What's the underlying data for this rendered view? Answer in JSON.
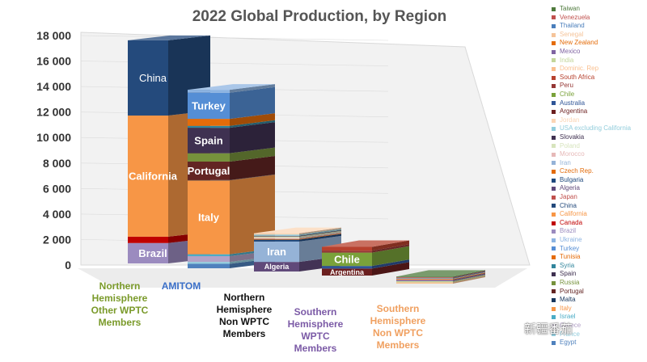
{
  "chart_data": {
    "type": "bar",
    "subtype": "stacked-3d",
    "title": "2022 Global Production, by Region",
    "ylim": [
      0,
      18000
    ],
    "yticks": [
      "0",
      "2 000",
      "4 000",
      "6 000",
      "8 000",
      "10 000",
      "12 000",
      "14 000",
      "16 000",
      "18 000"
    ],
    "categories": [
      {
        "label": "Northern Hemisphere Other WPTC Members",
        "color": "#7a9a2a"
      },
      {
        "label": "AMITOM",
        "color": "#3a6fc8"
      },
      {
        "label": "Northern Hemisphere Non WPTC Members",
        "color": "#111111"
      },
      {
        "label": "Southern Hemisphere WPTC Members",
        "color": "#7b5aa6"
      },
      {
        "label": "Southern Hemisphere Non WPTC Members",
        "color": "#f0a060"
      }
    ],
    "stacks": [
      {
        "category": "Northern Hemisphere Other WPTC Members",
        "segments": [
          {
            "name": "Brazil",
            "value": 1600,
            "label": "Brazil"
          },
          {
            "name": "Canada",
            "value": 500,
            "label": ""
          },
          {
            "name": "California",
            "value": 9500,
            "label": "California"
          },
          {
            "name": "China",
            "value": 5900,
            "label": "China"
          }
        ]
      },
      {
        "category": "AMITOM",
        "segments": [
          {
            "name": "Egypt",
            "value": 350,
            "label": ""
          },
          {
            "name": "France",
            "value": 150,
            "label": ""
          },
          {
            "name": "Greece",
            "value": 450,
            "label": ""
          },
          {
            "name": "Israel",
            "value": 150,
            "label": ""
          },
          {
            "name": "Italy",
            "value": 5800,
            "label": "Italy"
          },
          {
            "name": "Malta",
            "value": 20,
            "label": ""
          },
          {
            "name": "Portugal",
            "value": 1450,
            "label": "Portugal"
          },
          {
            "name": "Russia",
            "value": 650,
            "label": ""
          },
          {
            "name": "Spain",
            "value": 2000,
            "label": "Spain"
          },
          {
            "name": "Syria",
            "value": 150,
            "label": ""
          },
          {
            "name": "Tunisia",
            "value": 550,
            "label": ""
          },
          {
            "name": "Turkey",
            "value": 2050,
            "label": "Turkey"
          },
          {
            "name": "Ukraine",
            "value": 230,
            "label": ""
          }
        ]
      },
      {
        "category": "Northern Hemisphere Non WPTC Members",
        "segments": [
          {
            "name": "Algeria",
            "value": 750,
            "label": "Algeria"
          },
          {
            "name": "Iran",
            "value": 1600,
            "label": "Iran"
          },
          {
            "name": "Bulgaria",
            "value": 150,
            "label": ""
          },
          {
            "name": "Czech Rep.",
            "value": 50,
            "label": ""
          },
          {
            "name": "Morocco",
            "value": 100,
            "label": ""
          },
          {
            "name": "Poland",
            "value": 100,
            "label": ""
          },
          {
            "name": "Slovakia",
            "value": 50,
            "label": ""
          },
          {
            "name": "USA excluding California",
            "value": 100,
            "label": ""
          },
          {
            "name": "Jordan",
            "value": 100,
            "label": ""
          }
        ]
      },
      {
        "category": "Southern Hemisphere WPTC Members",
        "segments": [
          {
            "name": "Argentina",
            "value": 550,
            "label": "Argentina"
          },
          {
            "name": "Australia",
            "value": 200,
            "label": ""
          },
          {
            "name": "Chile",
            "value": 1050,
            "label": "Chile"
          },
          {
            "name": "Peru",
            "value": 150,
            "label": ""
          },
          {
            "name": "South Africa",
            "value": 300,
            "label": ""
          }
        ]
      },
      {
        "category": "Southern Hemisphere Non WPTC Members",
        "segments": [
          {
            "name": "Dominic. Rep",
            "value": 100,
            "label": ""
          },
          {
            "name": "India",
            "value": 100,
            "label": ""
          },
          {
            "name": "Mexico",
            "value": 100,
            "label": ""
          },
          {
            "name": "New Zealand",
            "value": 50,
            "label": ""
          },
          {
            "name": "Senegal",
            "value": 50,
            "label": ""
          },
          {
            "name": "Thailand",
            "value": 50,
            "label": ""
          },
          {
            "name": "Venezuela",
            "value": 50,
            "label": ""
          },
          {
            "name": "Taiwan",
            "value": 50,
            "label": ""
          }
        ]
      }
    ],
    "legend": {
      "position": "right",
      "items": [
        {
          "name": "Taiwan",
          "color": "#4e7a3c"
        },
        {
          "name": "Venezuela",
          "color": "#c0504d"
        },
        {
          "name": "Thailand",
          "color": "#4a7ebb"
        },
        {
          "name": "Senegal",
          "color": "#f5c49a"
        },
        {
          "name": "New Zealand",
          "color": "#e46c0a"
        },
        {
          "name": "Mexico",
          "color": "#8064a2"
        },
        {
          "name": "India",
          "color": "#c3d69b"
        },
        {
          "name": "Dominic. Rep",
          "color": "#fac090"
        },
        {
          "name": "South Africa",
          "color": "#b7412e"
        },
        {
          "name": "Peru",
          "color": "#953735"
        },
        {
          "name": "Chile",
          "color": "#7aa23a"
        },
        {
          "name": "Australia",
          "color": "#2f5597"
        },
        {
          "name": "Argentina",
          "color": "#6b1f1f"
        },
        {
          "name": "Jordan",
          "color": "#fbd5b5"
        },
        {
          "name": "USA excluding California",
          "color": "#92cddc"
        },
        {
          "name": "Slovakia",
          "color": "#403151"
        },
        {
          "name": "Poland",
          "color": "#d7e4bd"
        },
        {
          "name": "Morocco",
          "color": "#e6b9b8"
        },
        {
          "name": "Iran",
          "color": "#95b3d7"
        },
        {
          "name": "Czech Rep.",
          "color": "#e26b0a"
        },
        {
          "name": "Bulgaria",
          "color": "#1f497d"
        },
        {
          "name": "Algeria",
          "color": "#60497a"
        },
        {
          "name": "Japan",
          "color": "#c0504d"
        },
        {
          "name": "China",
          "color": "#244a7c"
        },
        {
          "name": "California",
          "color": "#f79646"
        },
        {
          "name": "Canada",
          "color": "#c00000"
        },
        {
          "name": "Brazil",
          "color": "#9b8bbf"
        },
        {
          "name": "Ukraine",
          "color": "#8db4e2"
        },
        {
          "name": "Turkey",
          "color": "#558ed5"
        },
        {
          "name": "Tunisia",
          "color": "#e46c0a"
        },
        {
          "name": "Syria",
          "color": "#31859c"
        },
        {
          "name": "Spain",
          "color": "#3f3151"
        },
        {
          "name": "Russia",
          "color": "#76923c"
        },
        {
          "name": "Portugal",
          "color": "#632523"
        },
        {
          "name": "Malta",
          "color": "#17375e"
        },
        {
          "name": "Italy",
          "color": "#f79646"
        },
        {
          "name": "Israel",
          "color": "#4bacc6"
        },
        {
          "name": "Greece",
          "color": "#b3a2c7"
        },
        {
          "name": "France",
          "color": "#93cddd"
        },
        {
          "name": "Egypt",
          "color": "#4f81bd"
        }
      ]
    }
  },
  "watermark": "新疆番茄"
}
